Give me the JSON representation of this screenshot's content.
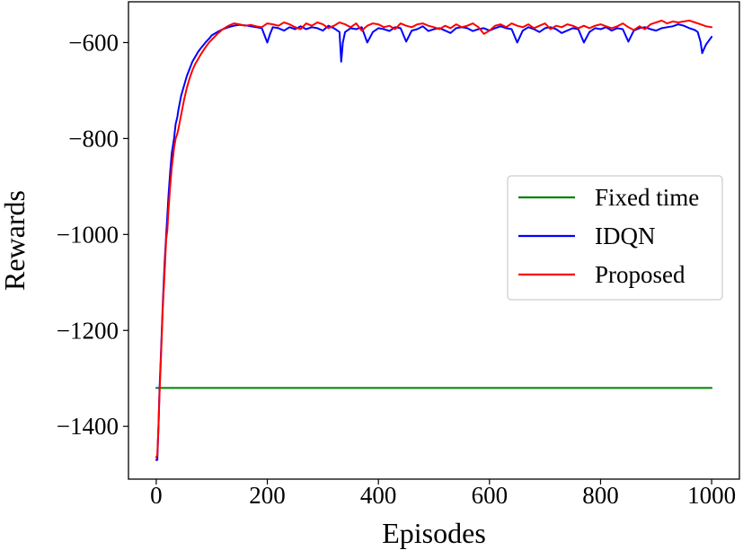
{
  "chart_data": {
    "type": "line",
    "title": "",
    "xlabel": "Episodes",
    "ylabel": "Rewards",
    "xlim": [
      -50,
      1050
    ],
    "ylim": [
      -1510,
      -515
    ],
    "xticks": [
      0,
      200,
      400,
      600,
      800,
      1000
    ],
    "xtick_labels": [
      "0",
      "200",
      "400",
      "600",
      "800",
      "1000"
    ],
    "yticks": [
      -600,
      -800,
      -1000,
      -1200,
      -1400
    ],
    "ytick_labels": [
      "−600",
      "−800",
      "−1000",
      "−1200",
      "−1400"
    ],
    "grid": false,
    "legend": {
      "position": "center-right"
    },
    "series": [
      {
        "name": "Fixed time",
        "color": "#008000",
        "x": [
          0,
          1000
        ],
        "y": [
          -1320,
          -1320
        ]
      },
      {
        "name": "IDQN",
        "color": "#0000ff",
        "x": [
          0,
          2,
          4,
          6,
          8,
          10,
          12,
          15,
          18,
          20,
          22,
          25,
          28,
          30,
          32,
          35,
          38,
          40,
          45,
          50,
          55,
          60,
          65,
          70,
          75,
          80,
          85,
          90,
          95,
          100,
          110,
          120,
          130,
          140,
          150,
          160,
          170,
          180,
          190,
          200,
          205,
          210,
          220,
          230,
          240,
          250,
          260,
          270,
          280,
          290,
          300,
          310,
          320,
          330,
          333,
          336,
          340,
          350,
          360,
          370,
          380,
          390,
          400,
          410,
          420,
          430,
          440,
          450,
          460,
          470,
          480,
          490,
          500,
          510,
          520,
          530,
          540,
          550,
          560,
          570,
          580,
          590,
          600,
          610,
          620,
          630,
          640,
          650,
          660,
          670,
          680,
          690,
          700,
          710,
          720,
          730,
          740,
          750,
          760,
          770,
          780,
          790,
          800,
          810,
          820,
          830,
          840,
          850,
          860,
          870,
          880,
          890,
          900,
          910,
          920,
          930,
          940,
          950,
          960,
          970,
          975,
          980,
          983,
          986,
          990,
          995,
          1000
        ],
        "y": [
          -1470,
          -1470,
          -1400,
          -1320,
          -1260,
          -1200,
          -1140,
          -1060,
          -1000,
          -960,
          -920,
          -870,
          -830,
          -815,
          -800,
          -770,
          -755,
          -740,
          -710,
          -690,
          -670,
          -655,
          -640,
          -630,
          -620,
          -612,
          -605,
          -598,
          -592,
          -585,
          -578,
          -572,
          -568,
          -565,
          -563,
          -564,
          -566,
          -568,
          -570,
          -600,
          -582,
          -568,
          -570,
          -575,
          -568,
          -572,
          -566,
          -572,
          -568,
          -570,
          -575,
          -565,
          -570,
          -578,
          -640,
          -600,
          -578,
          -570,
          -572,
          -568,
          -600,
          -578,
          -570,
          -572,
          -576,
          -568,
          -570,
          -598,
          -575,
          -572,
          -566,
          -576,
          -572,
          -570,
          -575,
          -580,
          -570,
          -568,
          -570,
          -576,
          -572,
          -570,
          -575,
          -570,
          -566,
          -570,
          -572,
          -600,
          -575,
          -568,
          -572,
          -578,
          -570,
          -568,
          -572,
          -580,
          -575,
          -570,
          -572,
          -600,
          -578,
          -570,
          -572,
          -568,
          -575,
          -570,
          -572,
          -598,
          -575,
          -570,
          -568,
          -572,
          -575,
          -570,
          -568,
          -566,
          -562,
          -565,
          -570,
          -574,
          -578,
          -598,
          -622,
          -614,
          -604,
          -596,
          -588
        ]
      },
      {
        "name": "Proposed",
        "color": "#ff0000",
        "x": [
          0,
          2,
          4,
          6,
          8,
          10,
          12,
          15,
          18,
          20,
          22,
          25,
          28,
          30,
          32,
          35,
          38,
          40,
          45,
          50,
          55,
          60,
          65,
          70,
          75,
          80,
          85,
          90,
          95,
          100,
          110,
          120,
          130,
          140,
          150,
          160,
          170,
          180,
          190,
          200,
          210,
          220,
          230,
          240,
          250,
          260,
          270,
          280,
          290,
          300,
          310,
          320,
          330,
          340,
          350,
          360,
          370,
          380,
          390,
          400,
          410,
          420,
          430,
          440,
          450,
          460,
          470,
          480,
          490,
          500,
          510,
          520,
          530,
          540,
          550,
          560,
          570,
          580,
          590,
          600,
          610,
          620,
          630,
          640,
          650,
          660,
          670,
          680,
          690,
          700,
          710,
          720,
          730,
          740,
          750,
          760,
          770,
          780,
          790,
          800,
          810,
          820,
          830,
          840,
          850,
          860,
          870,
          880,
          890,
          900,
          910,
          920,
          930,
          940,
          950,
          960,
          970,
          980,
          990,
          1000
        ],
        "y": [
          -1465,
          -1460,
          -1400,
          -1330,
          -1270,
          -1210,
          -1150,
          -1080,
          -1010,
          -990,
          -950,
          -900,
          -860,
          -840,
          -820,
          -800,
          -790,
          -780,
          -750,
          -720,
          -695,
          -675,
          -658,
          -645,
          -635,
          -625,
          -616,
          -608,
          -600,
          -594,
          -582,
          -572,
          -565,
          -560,
          -562,
          -565,
          -563,
          -566,
          -568,
          -560,
          -562,
          -565,
          -558,
          -562,
          -568,
          -572,
          -560,
          -565,
          -558,
          -562,
          -570,
          -565,
          -558,
          -562,
          -568,
          -560,
          -575,
          -565,
          -560,
          -562,
          -568,
          -565,
          -572,
          -560,
          -565,
          -568,
          -562,
          -560,
          -565,
          -568,
          -572,
          -565,
          -570,
          -562,
          -568,
          -565,
          -560,
          -568,
          -582,
          -575,
          -565,
          -562,
          -568,
          -560,
          -565,
          -568,
          -562,
          -570,
          -565,
          -560,
          -572,
          -565,
          -568,
          -562,
          -565,
          -570,
          -565,
          -570,
          -565,
          -562,
          -566,
          -570,
          -566,
          -560,
          -568,
          -574,
          -566,
          -572,
          -562,
          -558,
          -554,
          -560,
          -556,
          -558,
          -556,
          -554,
          -558,
          -562,
          -566,
          -568
        ]
      }
    ]
  }
}
